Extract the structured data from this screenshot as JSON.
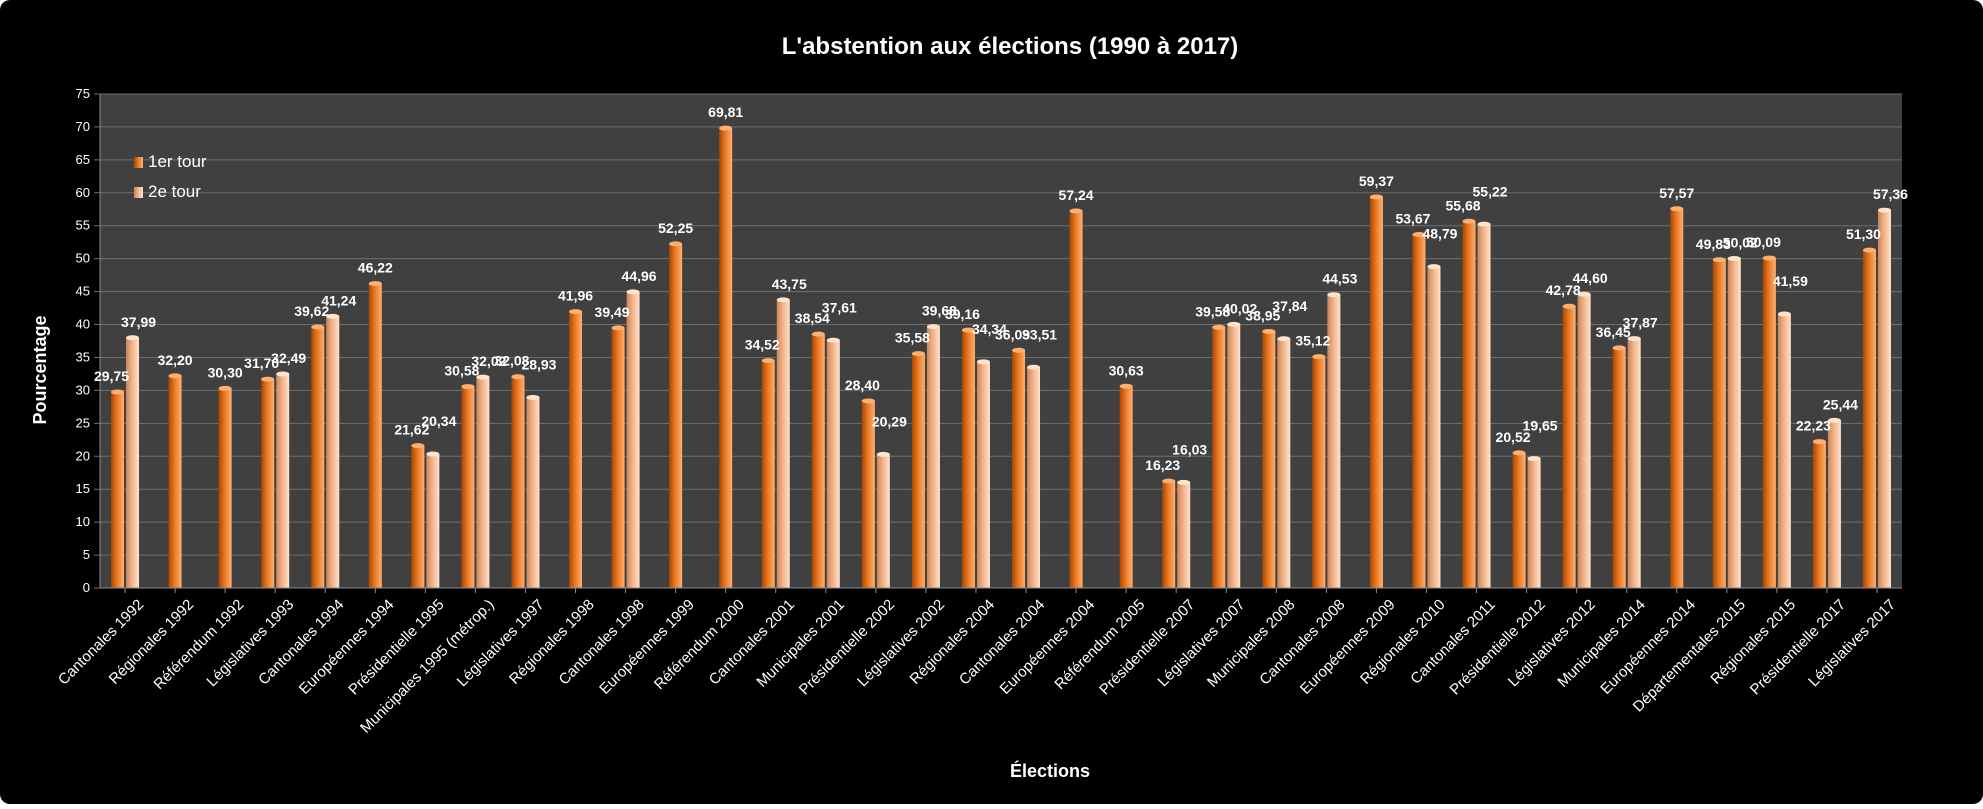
{
  "chart_data": {
    "type": "bar",
    "title": "L'abstention aux élections (1990 à 2017)",
    "xlabel": "Élections",
    "ylabel": "Pourcentage",
    "ylim": [
      0,
      75
    ],
    "ytick_step": 5,
    "grid": true,
    "legend_position": "top-left",
    "categories": [
      "Cantonales 1992",
      "Régionales 1992",
      "Référendum 1992",
      "Législatives 1993",
      "Cantonales 1994",
      "Européennes 1994",
      "Présidentielle 1995",
      "Municipales 1995 (métrop.)",
      "Législatives 1997",
      "Régionales 1998",
      "Cantonales 1998",
      "Européennes 1999",
      "Référendum 2000",
      "Cantonales 2001",
      "Municipales 2001",
      "Présidentielle 2002",
      "Législatives 2002",
      "Régionales 2004",
      "Cantonales 2004",
      "Européennes 2004",
      "Référendum 2005",
      "Présidentielle 2007",
      "Législatives 2007",
      "Municipales 2008",
      "Cantonales 2008",
      "Européennes 2009",
      "Régionales 2010",
      "Cantonales 2011",
      "Présidentielle 2012",
      "Législatives 2012",
      "Municipales 2014",
      "Européennes 2014",
      "Départementales 2015",
      "Régionales 2015",
      "Présidentielle 2017",
      "Législatives 2017"
    ],
    "series": [
      {
        "name": "1er tour",
        "values": [
          29.75,
          32.2,
          30.3,
          31.7,
          39.62,
          46.22,
          21.62,
          30.58,
          32.08,
          41.96,
          39.49,
          52.25,
          69.81,
          34.52,
          38.54,
          28.4,
          35.58,
          39.16,
          36.09,
          57.24,
          30.63,
          16.23,
          39.58,
          38.95,
          35.12,
          59.37,
          53.67,
          55.68,
          20.52,
          42.78,
          36.45,
          57.57,
          49.83,
          50.09,
          22.23,
          51.3
        ],
        "labels": [
          "29,75",
          "32,20",
          "30,30",
          "31,70",
          "39,62",
          "46,22",
          "21,62",
          "30,58",
          "32,08",
          "41,96",
          "39,49",
          "52,25",
          "69,81",
          "34,52",
          "38,54",
          "28,40",
          "35,58",
          "39,16",
          "36,09",
          "57,24",
          "30,63",
          "16,23",
          "39,58",
          "38,95",
          "35,12",
          "59,37",
          "53,67",
          "55,68",
          "20,52",
          "42,78",
          "36,45",
          "57,57",
          "49,83",
          "50,09",
          "22,23",
          "51,30"
        ]
      },
      {
        "name": "2e tour",
        "values": [
          37.99,
          null,
          null,
          32.49,
          41.24,
          null,
          20.34,
          32.02,
          28.93,
          null,
          44.96,
          null,
          null,
          43.75,
          37.61,
          20.29,
          39.68,
          34.34,
          33.51,
          null,
          null,
          16.03,
          40.02,
          37.84,
          44.53,
          null,
          48.79,
          55.22,
          19.65,
          44.6,
          37.87,
          null,
          50.02,
          41.59,
          25.44,
          57.36
        ],
        "labels": [
          "37,99",
          null,
          null,
          "32,49",
          "41,24",
          null,
          "20,34",
          "32,02",
          "28,93",
          null,
          "44,96",
          null,
          null,
          "43,75",
          "37,61",
          "20,29",
          "39,68",
          "34,34",
          "33,51",
          null,
          null,
          "16,03",
          "40,02",
          "37,84",
          "44,53",
          null,
          "48,79",
          "55,22",
          "19,65",
          "44,60",
          "37,87",
          null,
          "50,02",
          "41,59",
          "25,44",
          "57,36"
        ]
      }
    ],
    "colors": {
      "series1_dark": "#a84700",
      "series1_mid": "#e87722",
      "series1_light": "#ffb070",
      "series2_dark": "#c8875a",
      "series2_mid": "#f2b188",
      "series2_light": "#ffe3cc",
      "plot_background": "#404040",
      "frame_background": "#000000"
    }
  }
}
